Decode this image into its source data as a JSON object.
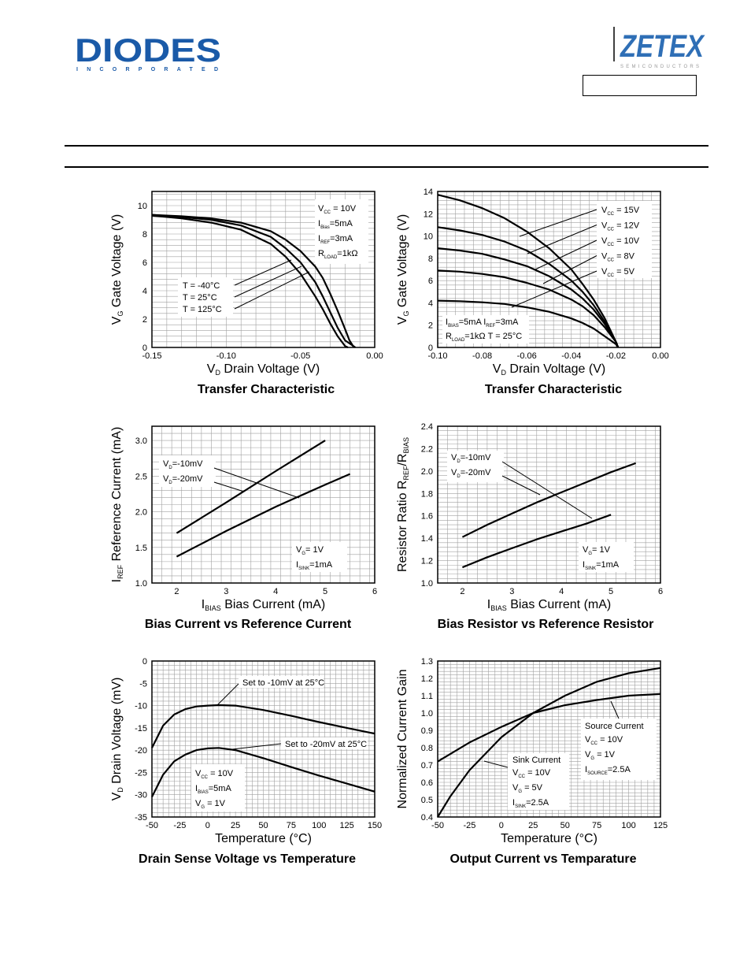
{
  "header": {
    "brand_left": "DIODES",
    "brand_left_sub": "INCORPORATED",
    "brand_right": "ZETEX",
    "brand_right_sub": "SEMICONDUCTORS",
    "part_number": ""
  },
  "colors": {
    "line": "#000000",
    "grid": "#a0a0a0",
    "brand_blue": "#1a5aa8",
    "brand_zetex": "#2f6fb6"
  },
  "chart_data": [
    {
      "id": "c1",
      "type": "line",
      "title": "Transfer Characteristic",
      "xlabel": {
        "main": "V",
        "sub": "D",
        "rest": " Drain Voltage (V)"
      },
      "ylabel": {
        "main": "V",
        "sub": "G",
        "rest": " Gate Voltage (V)"
      },
      "xlim": [
        -0.15,
        0
      ],
      "ylim": [
        0,
        11
      ],
      "grid": true,
      "xticks": [
        -0.15,
        -0.1,
        -0.05,
        0.0
      ],
      "xtick_labels": [
        "-0.15",
        "-0.10",
        "-0.05",
        "0.00"
      ],
      "yticks": [
        0,
        2,
        4,
        6,
        8,
        10
      ],
      "ytick_labels": [
        "0",
        "2",
        "4",
        "6",
        "8",
        "10"
      ],
      "series": [
        {
          "name": "T = -40°C",
          "x": [
            -0.15,
            -0.13,
            -0.11,
            -0.09,
            -0.07,
            -0.06,
            -0.05,
            -0.04,
            -0.035,
            -0.03,
            -0.025,
            -0.02,
            -0.018
          ],
          "y": [
            9.3,
            9.1,
            8.8,
            8.3,
            7.3,
            6.4,
            5.2,
            3.6,
            2.7,
            1.7,
            0.8,
            0.1,
            0
          ]
        },
        {
          "name": "T = 25°C",
          "x": [
            -0.15,
            -0.13,
            -0.11,
            -0.09,
            -0.07,
            -0.06,
            -0.05,
            -0.04,
            -0.035,
            -0.03,
            -0.025,
            -0.02,
            -0.013
          ],
          "y": [
            9.35,
            9.2,
            9.0,
            8.6,
            7.8,
            7.0,
            6.0,
            4.6,
            3.6,
            2.5,
            1.4,
            0.5,
            0
          ]
        },
        {
          "name": "T = 125°C",
          "x": [
            -0.15,
            -0.13,
            -0.11,
            -0.09,
            -0.07,
            -0.06,
            -0.05,
            -0.04,
            -0.035,
            -0.03,
            -0.025,
            -0.02,
            -0.017,
            -0.014
          ],
          "y": [
            9.35,
            9.25,
            9.1,
            8.8,
            8.2,
            7.6,
            6.8,
            5.7,
            4.9,
            3.8,
            2.6,
            1.3,
            0.5,
            0
          ]
        }
      ],
      "annotations": {
        "temps": [
          "T = -40°C",
          "T = 25°C",
          "T = 125°C"
        ],
        "conditions": [
          {
            "main": "V",
            "sub": "CC",
            "rest": " = 10V"
          },
          {
            "main": "I",
            "sub": "Bias",
            "rest": "=5mA"
          },
          {
            "main": "I",
            "sub": "REF",
            "rest": "=3mA"
          },
          {
            "main": "R",
            "sub": "LOAD",
            "rest": "=1kΩ"
          }
        ]
      }
    },
    {
      "id": "c2",
      "type": "line",
      "title": "Transfer Characteristic",
      "xlabel": {
        "main": "V",
        "sub": "D",
        "rest": " Drain Voltage (V)"
      },
      "ylabel": {
        "main": "V",
        "sub": "G",
        "rest": " Gate Voltage (V)"
      },
      "xlim": [
        -0.1,
        0
      ],
      "ylim": [
        0,
        14
      ],
      "grid": true,
      "xticks": [
        -0.1,
        -0.08,
        -0.06,
        -0.04,
        -0.02,
        0.0
      ],
      "xtick_labels": [
        "-0.10",
        "-0.08",
        "-0.06",
        "-0.04",
        "-0.02",
        "0.00"
      ],
      "yticks": [
        0,
        2,
        4,
        6,
        8,
        10,
        12,
        14
      ],
      "ytick_labels": [
        "0",
        "2",
        "4",
        "6",
        "8",
        "10",
        "12",
        "14"
      ],
      "series": [
        {
          "name": "VCC = 15V",
          "x": [
            -0.1,
            -0.09,
            -0.08,
            -0.07,
            -0.06,
            -0.05,
            -0.04,
            -0.035,
            -0.03,
            -0.025,
            -0.02,
            -0.019
          ],
          "y": [
            13.7,
            13.2,
            12.5,
            11.6,
            10.4,
            8.9,
            7.0,
            5.7,
            4.3,
            2.6,
            0.5,
            0
          ]
        },
        {
          "name": "VCC = 12V",
          "x": [
            -0.1,
            -0.09,
            -0.08,
            -0.07,
            -0.06,
            -0.05,
            -0.04,
            -0.035,
            -0.03,
            -0.025,
            -0.02,
            -0.019
          ],
          "y": [
            10.8,
            10.5,
            10.1,
            9.5,
            8.7,
            7.5,
            6.0,
            5.0,
            3.8,
            2.3,
            0.5,
            0
          ]
        },
        {
          "name": "VCC = 10V",
          "x": [
            -0.1,
            -0.09,
            -0.08,
            -0.07,
            -0.06,
            -0.05,
            -0.04,
            -0.035,
            -0.03,
            -0.025,
            -0.02,
            -0.019
          ],
          "y": [
            8.9,
            8.7,
            8.4,
            7.9,
            7.3,
            6.4,
            5.2,
            4.4,
            3.4,
            2.1,
            0.5,
            0
          ]
        },
        {
          "name": "VCC = 8V",
          "x": [
            -0.1,
            -0.09,
            -0.08,
            -0.07,
            -0.06,
            -0.05,
            -0.04,
            -0.035,
            -0.03,
            -0.025,
            -0.02,
            -0.019
          ],
          "y": [
            6.9,
            6.8,
            6.6,
            6.3,
            5.8,
            5.2,
            4.3,
            3.7,
            2.9,
            1.8,
            0.5,
            0
          ]
        },
        {
          "name": "VCC = 5V",
          "x": [
            -0.1,
            -0.09,
            -0.08,
            -0.07,
            -0.06,
            -0.05,
            -0.04,
            -0.035,
            -0.03,
            -0.025,
            -0.02,
            -0.019
          ],
          "y": [
            4.2,
            4.15,
            4.05,
            3.9,
            3.6,
            3.2,
            2.6,
            2.2,
            1.7,
            1.0,
            0.3,
            0
          ]
        }
      ],
      "annotations": {
        "vcc": [
          {
            "main": "V",
            "sub": "CC",
            "rest": " = 15V"
          },
          {
            "main": "V",
            "sub": "CC",
            "rest": " = 12V"
          },
          {
            "main": "V",
            "sub": "CC",
            "rest": " = 10V"
          },
          {
            "main": "V",
            "sub": "CC",
            "rest": " = 8V"
          },
          {
            "main": "V",
            "sub": "CC",
            "rest": " = 5V"
          }
        ],
        "conditions": [
          {
            "main": "I",
            "sub": "BIAS",
            "rest": "=5mA  I",
            "sub2": "REF",
            "rest2": "=3mA"
          },
          {
            "main": "R",
            "sub": "LOAD",
            "rest": "=1kΩ  T = 25°C"
          }
        ]
      }
    },
    {
      "id": "c3",
      "type": "line",
      "title": "Bias Current vs Reference Current",
      "xlabel": {
        "main": "I",
        "sub": "BIAS",
        "rest": " Bias Current (mA)"
      },
      "ylabel": {
        "main": "I",
        "sub": "REF",
        "rest": " Reference Current (mA)"
      },
      "xlim": [
        1.5,
        6
      ],
      "ylim": [
        1.0,
        3.2
      ],
      "grid": true,
      "xticks": [
        2,
        3,
        4,
        5,
        6
      ],
      "xtick_labels": [
        "2",
        "3",
        "4",
        "5",
        "6"
      ],
      "yticks": [
        1.0,
        1.5,
        2.0,
        2.5,
        3.0
      ],
      "ytick_labels": [
        "1.0",
        "1.5",
        "2.0",
        "2.5",
        "3.0"
      ],
      "series": [
        {
          "name": "VD=-10mV",
          "x": [
            2,
            3,
            4,
            5
          ],
          "y": [
            1.7,
            2.13,
            2.57,
            3.0
          ]
        },
        {
          "name": "VD=-20mV",
          "x": [
            2,
            3,
            4,
            5,
            5.5
          ],
          "y": [
            1.37,
            1.73,
            2.07,
            2.38,
            2.53
          ]
        }
      ],
      "annotations": {
        "series_labels": [
          {
            "main": "V",
            "sub": "D",
            "rest": "=-10mV"
          },
          {
            "main": "V",
            "sub": "D",
            "rest": "=-20mV"
          }
        ],
        "conditions": [
          {
            "main": "V",
            "sub": "G",
            "rest": "= 1V"
          },
          {
            "main": "I",
            "sub": "SINK",
            "rest": "=1mA"
          }
        ]
      }
    },
    {
      "id": "c4",
      "type": "line",
      "title": "Bias Resistor vs Reference Resistor",
      "xlabel": {
        "main": "I",
        "sub": "BIAS",
        "rest": " Bias Current (mA)"
      },
      "ylabel": {
        "main": "Resistor Ratio R",
        "sub": "REF",
        "rest": "/R",
        "sub2": "BIAS"
      },
      "xlim": [
        1.5,
        6
      ],
      "ylim": [
        1.0,
        2.4
      ],
      "grid": true,
      "xticks": [
        2,
        3,
        4,
        5,
        6
      ],
      "xtick_labels": [
        "2",
        "3",
        "4",
        "5",
        "6"
      ],
      "yticks": [
        1.0,
        1.2,
        1.4,
        1.6,
        1.8,
        2.0,
        2.2,
        2.4
      ],
      "ytick_labels": [
        "1.0",
        "1.2",
        "1.4",
        "1.6",
        "1.8",
        "2.0",
        "2.2",
        "2.4"
      ],
      "series": [
        {
          "name": "VD=-10mV",
          "x": [
            2,
            2.5,
            3,
            3.5,
            4,
            4.5,
            5,
            5.5
          ],
          "y": [
            1.41,
            1.52,
            1.62,
            1.72,
            1.81,
            1.9,
            1.99,
            2.07
          ]
        },
        {
          "name": "VD=-20mV",
          "x": [
            2,
            2.5,
            3,
            3.5,
            4,
            4.5,
            5
          ],
          "y": [
            1.14,
            1.23,
            1.31,
            1.39,
            1.46,
            1.53,
            1.61
          ]
        }
      ],
      "annotations": {
        "series_labels": [
          {
            "main": "V",
            "sub": "D",
            "rest": "=-10mV"
          },
          {
            "main": "V",
            "sub": "D",
            "rest": "=-20mV"
          }
        ],
        "conditions": [
          {
            "main": "V",
            "sub": "G",
            "rest": "= 1V"
          },
          {
            "main": "I",
            "sub": "SINK",
            "rest": "=1mA"
          }
        ]
      }
    },
    {
      "id": "c5",
      "type": "line",
      "title": "Drain Sense Voltage vs Temperature",
      "xlabel": {
        "main": "Temperature (°C)",
        "sub": "",
        "rest": ""
      },
      "ylabel": {
        "main": "V",
        "sub": "D",
        "rest": " Drain Voltage (mV)"
      },
      "xlim": [
        -50,
        150
      ],
      "ylim": [
        -35,
        0
      ],
      "grid": true,
      "xticks": [
        -50,
        -25,
        0,
        25,
        50,
        75,
        100,
        125,
        150
      ],
      "xtick_labels": [
        "-50",
        "-25",
        "0",
        "25",
        "50",
        "75",
        "100",
        "125",
        "150"
      ],
      "yticks": [
        -35,
        -30,
        -25,
        -20,
        -15,
        -10,
        -5,
        0
      ],
      "ytick_labels": [
        "-35",
        "-30",
        "-25",
        "-20",
        "-15",
        "-10",
        "-5",
        "0"
      ],
      "series": [
        {
          "name": "Set to -10mV at 25°C",
          "x": [
            -50,
            -40,
            -30,
            -20,
            -10,
            0,
            10,
            25,
            50,
            75,
            100,
            125,
            150
          ],
          "y": [
            -19.5,
            -14.5,
            -12.0,
            -10.8,
            -10.2,
            -10.0,
            -9.9,
            -10.0,
            -11.0,
            -12.3,
            -13.7,
            -15.0,
            -16.3
          ]
        },
        {
          "name": "Set to -20mV at 25°C",
          "x": [
            -50,
            -40,
            -30,
            -20,
            -10,
            0,
            10,
            25,
            50,
            75,
            100,
            125,
            150
          ],
          "y": [
            -30.5,
            -25.5,
            -22.5,
            -21.0,
            -20.0,
            -19.6,
            -19.5,
            -20.0,
            -21.8,
            -23.8,
            -25.7,
            -27.5,
            -29.3
          ]
        }
      ],
      "annotations": {
        "series_labels": [
          "Set to -10mV at 25°C",
          "Set to -20mV at 25°C"
        ],
        "conditions": [
          {
            "main": "V",
            "sub": "CC",
            "rest": " = 10V"
          },
          {
            "main": "I",
            "sub": "BIAS",
            "rest": "=5mA"
          },
          {
            "main": "V",
            "sub": "G",
            "rest": " = 1V"
          }
        ]
      }
    },
    {
      "id": "c6",
      "type": "line",
      "title": "Output Current vs Temparature",
      "xlabel": {
        "main": "Temperature (°C)",
        "sub": "",
        "rest": ""
      },
      "ylabel": {
        "main": "Normalized Current Gain",
        "sub": "",
        "rest": ""
      },
      "xlim": [
        -50,
        125
      ],
      "ylim": [
        0.4,
        1.3
      ],
      "grid": true,
      "xticks": [
        -50,
        -25,
        0,
        25,
        50,
        75,
        100,
        125
      ],
      "xtick_labels": [
        "-50",
        "-25",
        "0",
        "25",
        "50",
        "75",
        "100",
        "125"
      ],
      "yticks": [
        0.4,
        0.5,
        0.6,
        0.7,
        0.8,
        0.9,
        1.0,
        1.1,
        1.2,
        1.3
      ],
      "ytick_labels": [
        "0.4",
        "0.5",
        "0.6",
        "0.7",
        "0.8",
        "0.9",
        "1.0",
        "1.1",
        "1.2",
        "1.3"
      ],
      "series": [
        {
          "name": "Source Current",
          "x": [
            -50,
            -25,
            0,
            25,
            50,
            75,
            100,
            125
          ],
          "y": [
            0.72,
            0.83,
            0.92,
            1.0,
            1.045,
            1.075,
            1.1,
            1.11
          ]
        },
        {
          "name": "Sink Current",
          "x": [
            -50,
            -40,
            -25,
            0,
            25,
            50,
            75,
            100,
            125
          ],
          "y": [
            0.4,
            0.52,
            0.67,
            0.86,
            1.0,
            1.1,
            1.18,
            1.23,
            1.26
          ]
        }
      ],
      "annotations": {
        "sink_label": "Sink Current",
        "sink_conditions": [
          {
            "main": "V",
            "sub": "CC",
            "rest": " = 10V"
          },
          {
            "main": "V",
            "sub": "G",
            "rest": " = 5V"
          },
          {
            "main": "I",
            "sub": "SINK",
            "rest": "=2.5A"
          }
        ],
        "source_label": "Source Current",
        "source_conditions": [
          {
            "main": "V",
            "sub": "CC",
            "rest": " = 10V"
          },
          {
            "main": "V",
            "sub": "G",
            "rest": " = 1V"
          },
          {
            "main": "I",
            "sub": "SOURCE",
            "rest": "=2.5A"
          }
        ]
      }
    }
  ]
}
